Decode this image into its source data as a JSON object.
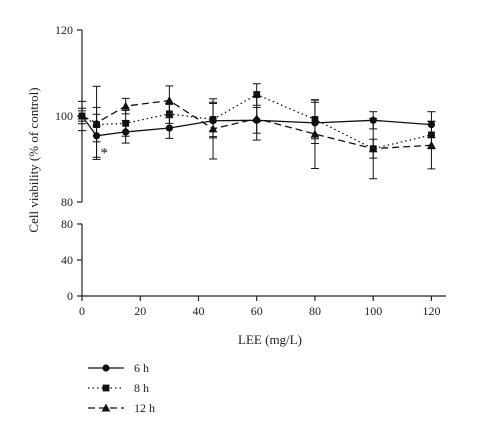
{
  "chart_data": {
    "type": "line",
    "xlabel": "LEE (mg/L)",
    "ylabel": "Cell viability (% of control)",
    "x": [
      0,
      5,
      15,
      30,
      45,
      60,
      80,
      100,
      120
    ],
    "x_ticks": [
      0,
      20,
      40,
      60,
      80,
      100,
      120
    ],
    "xlim": [
      0,
      125
    ],
    "y_upper_ticks": [
      80,
      100,
      120
    ],
    "y_lower_ticks": [
      0,
      40,
      80
    ],
    "ylim_upper": [
      80,
      120
    ],
    "ylim_lower": [
      0,
      80
    ],
    "axis_break": true,
    "grid": false,
    "legend_position": "bottom-left",
    "annotations": [
      {
        "text": "*",
        "x": 5,
        "y": 93.4
      }
    ],
    "series": [
      {
        "name": "6 h",
        "marker": "circle",
        "dash": "solid",
        "values": [
          100.0,
          95.4,
          96.3,
          97.2,
          98.9,
          99.0,
          98.4,
          99.0,
          98.0
        ],
        "errors": [
          1.8,
          5.0,
          2.6,
          2.4,
          4.0,
          3.0,
          4.8,
          2.0,
          3.0
        ]
      },
      {
        "name": "8 h",
        "marker": "square",
        "dash": "dotted",
        "values": [
          100.0,
          98.0,
          98.3,
          100.5,
          99.2,
          105.0,
          99.2,
          92.4,
          95.6
        ],
        "errors": [
          1.2,
          4.0,
          3.0,
          2.2,
          4.0,
          2.5,
          4.5,
          2.2,
          3.2
        ]
      },
      {
        "name": "12 h",
        "marker": "triangle",
        "dash": "dashed",
        "values": [
          100.0,
          98.4,
          102.3,
          103.6,
          97.0,
          99.4,
          95.8,
          92.4,
          93.2
        ],
        "errors": [
          3.4,
          8.5,
          1.8,
          3.4,
          7.0,
          5.0,
          8.0,
          7.0,
          5.5
        ]
      }
    ]
  }
}
